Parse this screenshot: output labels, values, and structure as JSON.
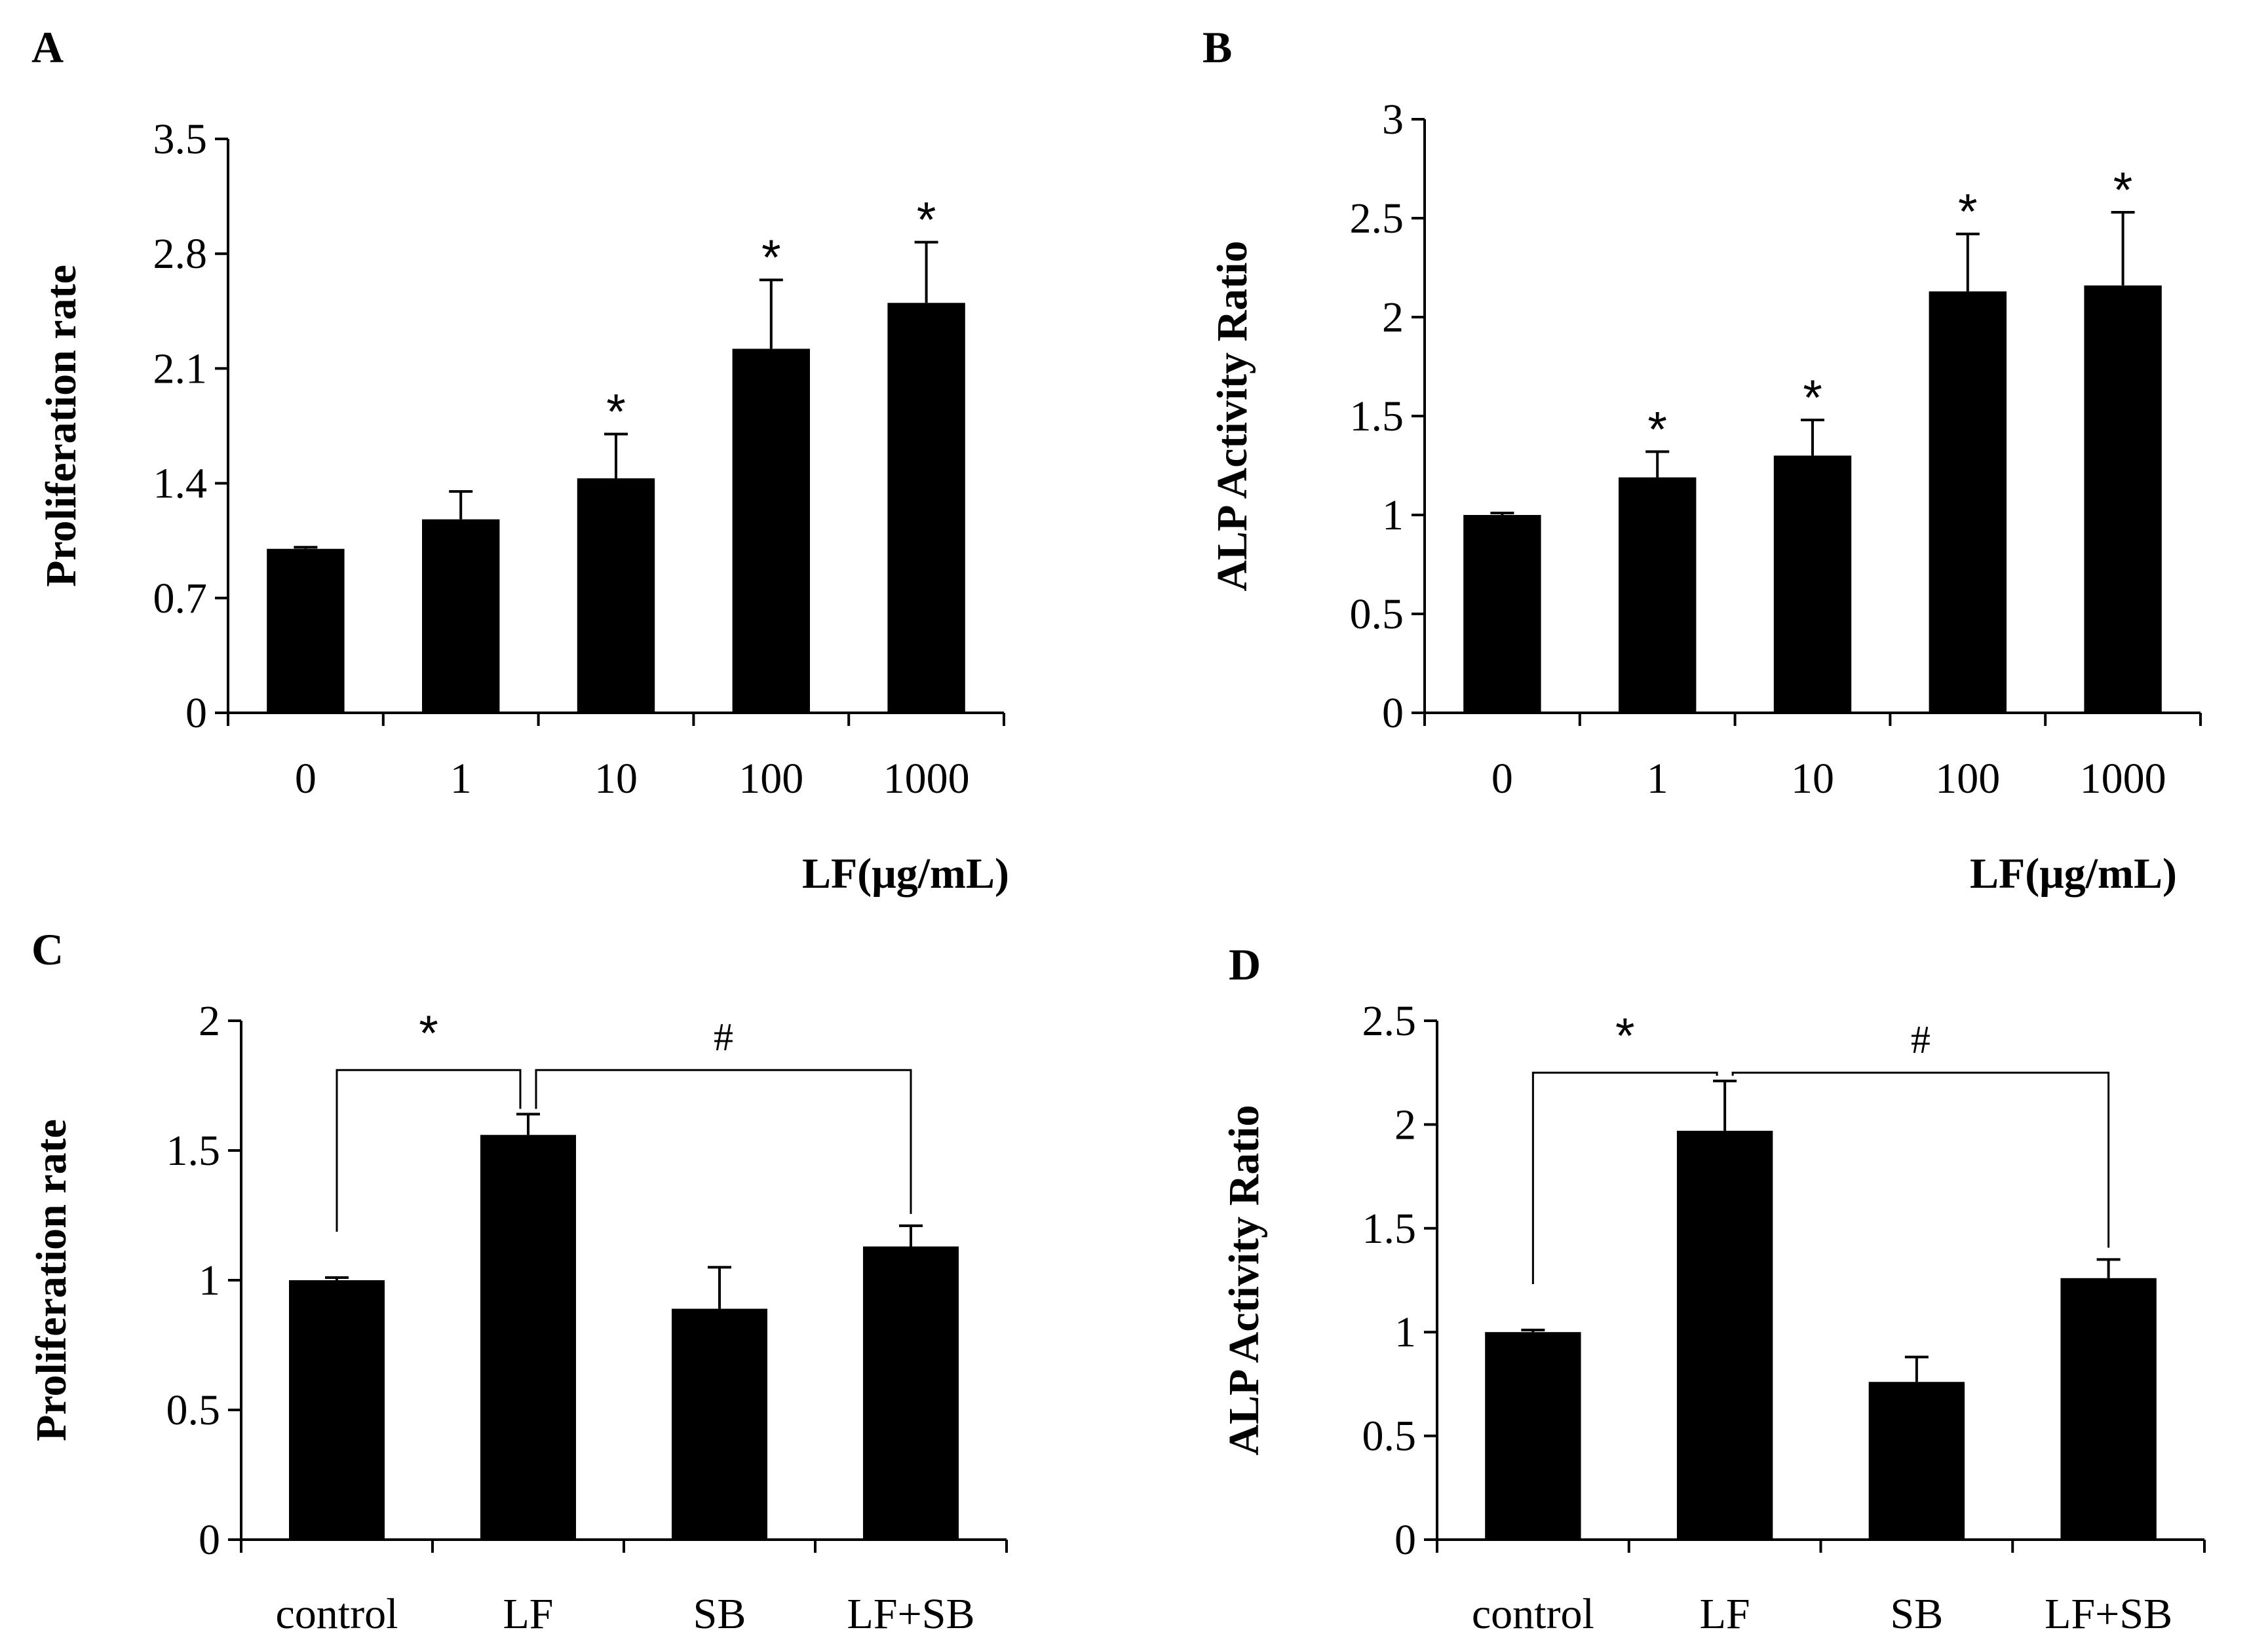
{
  "chart_data": [
    {
      "panel": "A",
      "type": "bar",
      "categories": [
        "0",
        "1",
        "10",
        "100",
        "1000"
      ],
      "values": [
        1.0,
        1.18,
        1.43,
        2.22,
        2.5
      ],
      "errors": [
        0.01,
        0.17,
        0.27,
        0.42,
        0.37
      ],
      "annotations": [
        "",
        "",
        "*",
        "*",
        "*"
      ],
      "ylabel": "Proliferation rate",
      "xlabel": "LF(μg/mL)",
      "ylim": [
        0,
        3.5
      ],
      "yticks": [
        "0",
        "0.7",
        "1.4",
        "2.1",
        "2.8",
        "3.5"
      ],
      "bar_color": "#000000"
    },
    {
      "panel": "B",
      "type": "bar",
      "categories": [
        "0",
        "1",
        "10",
        "100",
        "1000"
      ],
      "values": [
        1.0,
        1.19,
        1.3,
        2.13,
        2.16
      ],
      "errors": [
        0.01,
        0.13,
        0.18,
        0.29,
        0.37
      ],
      "annotations": [
        "",
        "*",
        "*",
        "*",
        "*"
      ],
      "ylabel": "ALP Activity Ratio",
      "xlabel": "LF(μg/mL)",
      "ylim": [
        0,
        3
      ],
      "yticks": [
        "0",
        "0.5",
        "1",
        "1.5",
        "2",
        "2.5",
        "3"
      ],
      "bar_color": "#000000"
    },
    {
      "panel": "C",
      "type": "bar",
      "categories": [
        "control",
        "LF",
        "SB",
        "LF+SB"
      ],
      "values": [
        1.0,
        1.56,
        0.89,
        1.13
      ],
      "errors": [
        0.01,
        0.08,
        0.16,
        0.08
      ],
      "ylabel": "Proliferation rate",
      "xlabel": "",
      "ylim": [
        0,
        2
      ],
      "yticks": [
        "0",
        "0.5",
        "1",
        "1.5",
        "2"
      ],
      "brackets": [
        {
          "from": 0,
          "to": 1,
          "label": "*"
        },
        {
          "from": 1,
          "to": 3,
          "label": "#"
        }
      ],
      "bar_color": "#000000"
    },
    {
      "panel": "D",
      "type": "bar",
      "categories": [
        "control",
        "LF",
        "SB",
        "LF+SB"
      ],
      "values": [
        1.0,
        1.97,
        0.76,
        1.26
      ],
      "errors": [
        0.01,
        0.24,
        0.12,
        0.09
      ],
      "ylabel": "ALP Activity Ratio",
      "xlabel": "",
      "ylim": [
        0,
        2.5
      ],
      "yticks": [
        "0",
        "0.5",
        "1",
        "1.5",
        "2",
        "2.5"
      ],
      "brackets": [
        {
          "from": 0,
          "to": 1,
          "label": "*"
        },
        {
          "from": 1,
          "to": 3,
          "label": "#"
        }
      ],
      "bar_color": "#000000"
    }
  ]
}
